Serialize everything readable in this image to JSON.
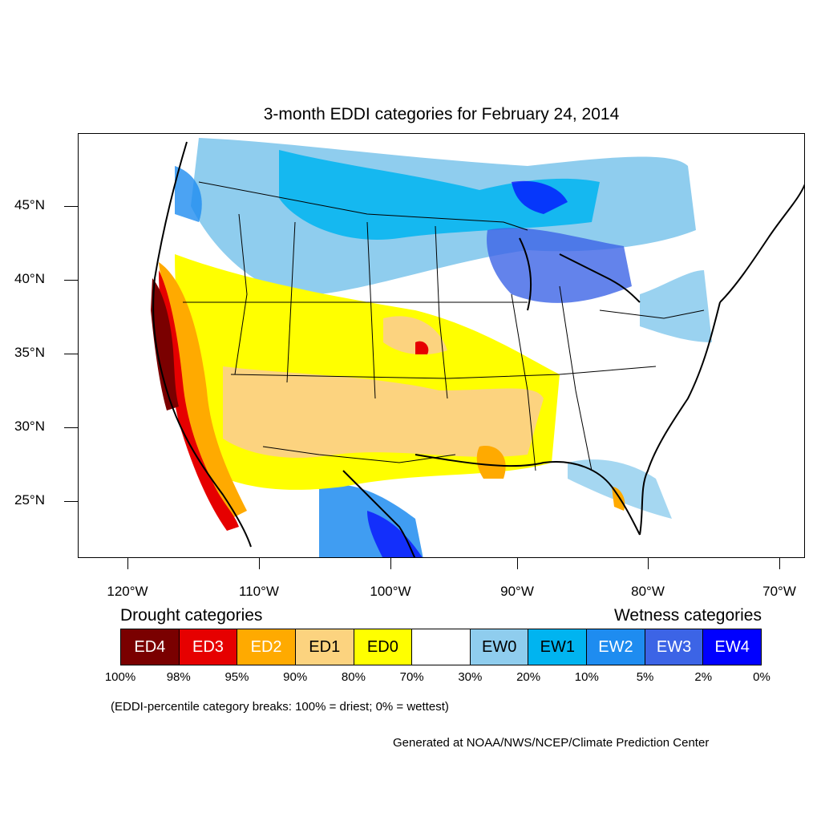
{
  "title": "3-month EDDI categories for February 24, 2014",
  "lat_labels": [
    "45°N",
    "40°N",
    "35°N",
    "30°N",
    "25°N"
  ],
  "lon_labels": [
    "120°W",
    "110°W",
    "100°W",
    "90°W",
    "80°W",
    "70°W"
  ],
  "legend": {
    "drought_heading": "Drought categories",
    "wetness_heading": "Wetness categories",
    "categories": [
      {
        "label": "ED4",
        "color": "#7a0000",
        "text_color": "#ffffff"
      },
      {
        "label": "ED3",
        "color": "#e60000",
        "text_color": "#ffffff"
      },
      {
        "label": "ED2",
        "color": "#ffaa00",
        "text_color": "#ffffff"
      },
      {
        "label": "ED1",
        "color": "#fcd37f",
        "text_color": "#000000"
      },
      {
        "label": "ED0",
        "color": "#ffff00",
        "text_color": "#000000"
      },
      {
        "label": "",
        "color": "#ffffff",
        "text_color": "#000000"
      },
      {
        "label": "EW0",
        "color": "#8fcdee",
        "text_color": "#000000"
      },
      {
        "label": "EW1",
        "color": "#00b4f0",
        "text_color": "#000000"
      },
      {
        "label": "EW2",
        "color": "#1e8cf0",
        "text_color": "#ffffff"
      },
      {
        "label": "EW3",
        "color": "#3c64e6",
        "text_color": "#ffffff"
      },
      {
        "label": "EW4",
        "color": "#0000ff",
        "text_color": "#ffffff"
      }
    ],
    "breaks": [
      "100%",
      "98%",
      "95%",
      "90%",
      "80%",
      "70%",
      "30%",
      "20%",
      "10%",
      "5%",
      "2%",
      "0%"
    ]
  },
  "note": "(EDDI-percentile category breaks: 100% = driest; 0% = wettest)",
  "credit": "Generated at NOAA/NWS/NCEP/Climate Prediction Center"
}
